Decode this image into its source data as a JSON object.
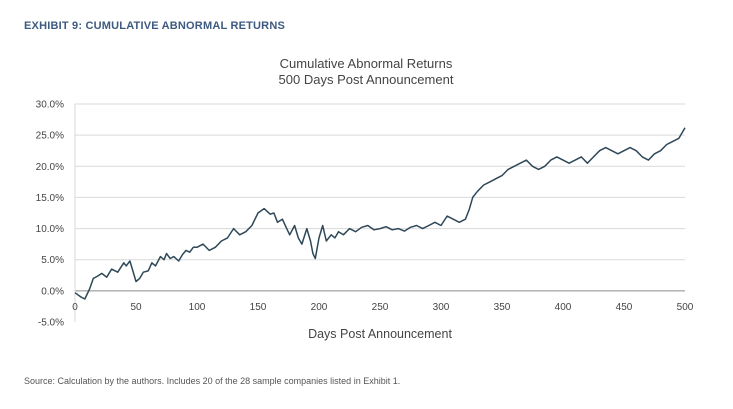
{
  "exhibit_label": "EXHIBIT 9: CUMULATIVE ABNORMAL RETURNS",
  "source_note": "Source: Calculation by the authors. Includes 20 of the 28 sample companies listed in Exhibit 1.",
  "colors": {
    "line": "#2f4858",
    "exhibit": "#3d5a80",
    "grid": "#d9d9d9"
  },
  "chart_data": {
    "type": "line",
    "title": "Cumulative Abnormal Returns",
    "subtitle": "500 Days Post Announcement",
    "xlabel": "Days Post Announcement",
    "ylabel": "",
    "xlim": [
      0,
      500
    ],
    "ylim": [
      -5,
      30
    ],
    "grid": true,
    "legend": "none",
    "xticks": [
      "0",
      "50",
      "100",
      "150",
      "200",
      "250",
      "300",
      "350",
      "400",
      "450",
      "500"
    ],
    "yticks": [
      "30.0%",
      "25.0%",
      "20.0%",
      "15.0%",
      "10.0%",
      "5.0%",
      "0.0%",
      "-5.0%"
    ],
    "ytick_values": [
      30,
      25,
      20,
      15,
      10,
      5,
      0,
      -5
    ],
    "series": [
      {
        "x": [
          0,
          5,
          8,
          12,
          15,
          18,
          22,
          26,
          30,
          35,
          40,
          42,
          45,
          48,
          50,
          53,
          56,
          60,
          63,
          66,
          70,
          73,
          75,
          78,
          81,
          85,
          88,
          91,
          94,
          97,
          100,
          105,
          110,
          115,
          120,
          125,
          130,
          135,
          140,
          145,
          150,
          155,
          160,
          163,
          166,
          170,
          173,
          176,
          180,
          183,
          186,
          190,
          193,
          195,
          197,
          200,
          203,
          206,
          210,
          213,
          216,
          220,
          225,
          230,
          235,
          240,
          245,
          250,
          255,
          260,
          265,
          270,
          275,
          280,
          285,
          290,
          295,
          300,
          305,
          310,
          315,
          320,
          323,
          326,
          330,
          335,
          340,
          345,
          350,
          355,
          360,
          365,
          370,
          375,
          380,
          385,
          390,
          395,
          400,
          405,
          410,
          415,
          420,
          425,
          430,
          435,
          440,
          445,
          450,
          455,
          460,
          465,
          470,
          475,
          480,
          485,
          490,
          495,
          500
        ],
        "y": [
          -0.3,
          -1.0,
          -1.3,
          0.3,
          2.0,
          2.3,
          2.8,
          2.2,
          3.5,
          3.0,
          4.5,
          4.0,
          4.8,
          2.8,
          1.5,
          2.0,
          3.0,
          3.2,
          4.5,
          4.0,
          5.5,
          5.0,
          6.0,
          5.2,
          5.5,
          4.8,
          5.8,
          6.5,
          6.2,
          7.0,
          7.0,
          7.5,
          6.5,
          7.0,
          8.0,
          8.5,
          10.0,
          9.0,
          9.5,
          10.5,
          12.5,
          13.2,
          12.3,
          12.5,
          11.0,
          11.5,
          10.2,
          9.0,
          10.5,
          8.5,
          7.5,
          10.0,
          8.0,
          6.0,
          5.2,
          8.5,
          10.5,
          8.0,
          9.0,
          8.5,
          9.5,
          9.0,
          10.0,
          9.5,
          10.2,
          10.5,
          9.8,
          10.0,
          10.3,
          9.8,
          10.0,
          9.6,
          10.2,
          10.5,
          10.0,
          10.5,
          11.0,
          10.5,
          12.0,
          11.5,
          11.0,
          11.5,
          13.0,
          15.0,
          16.0,
          17.0,
          17.5,
          18.0,
          18.5,
          19.5,
          20.0,
          20.5,
          21.0,
          20.0,
          19.5,
          20.0,
          21.0,
          21.5,
          21.0,
          20.5,
          21.0,
          21.5,
          20.5,
          21.5,
          22.5,
          23.0,
          22.5,
          22.0,
          22.5,
          23.0,
          22.5,
          21.5,
          21.0,
          22.0,
          22.5,
          23.5,
          24.0,
          24.5,
          26.2
        ]
      }
    ]
  }
}
